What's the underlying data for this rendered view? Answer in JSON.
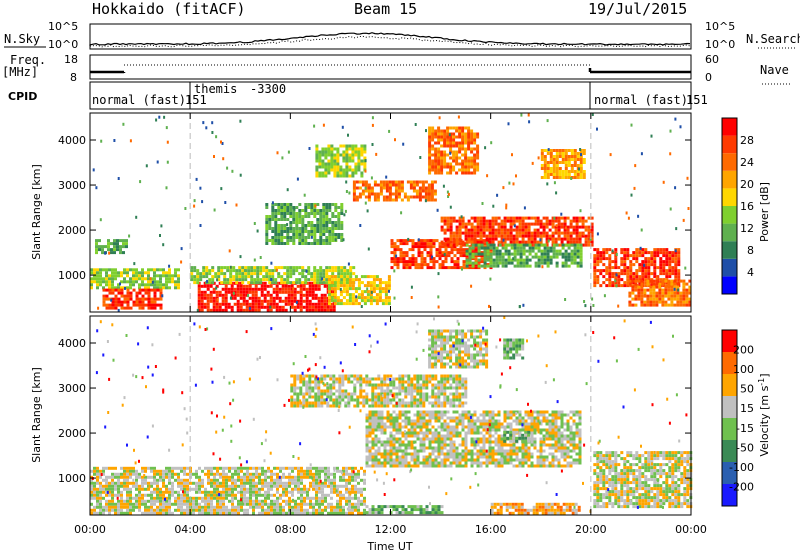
{
  "header": {
    "title": "Hokkaido (fitACF)",
    "beam": "Beam 15",
    "date": "19/Jul/2015"
  },
  "noise_panel": {
    "left_label": "N.Sky",
    "right_label": "N.Search",
    "ticks_left": [
      "10^5",
      "10^0"
    ],
    "ticks_right": [
      "10^5",
      "10^0"
    ]
  },
  "freq_panel": {
    "left_label_1": "Freq.",
    "left_label_2": "[MHz]",
    "ticks_left": [
      "18",
      "8"
    ],
    "right_label": "Nave",
    "ticks_right": [
      "60",
      "0"
    ]
  },
  "cpid_panel": {
    "label": "CPID",
    "segments": [
      {
        "name": "normal (fast)",
        "id": "151",
        "start_hr": 0.0
      },
      {
        "name": "themis",
        "id": "-3300",
        "start_hr": 4.0
      },
      {
        "name": "normal (fast)",
        "id": "151",
        "start_hr": 20.0
      }
    ]
  },
  "time_axis": {
    "label": "Time UT",
    "ticks": [
      "00:00",
      "04:00",
      "08:00",
      "12:00",
      "16:00",
      "20:00",
      "00:00"
    ]
  },
  "power_panel": {
    "ylabel": "Slant Range [km]",
    "yticks": [
      "1000",
      "2000",
      "3000",
      "4000"
    ],
    "colorbar_label": "Power [dB]",
    "colorbar_ticks": [
      "28",
      "24",
      "20",
      "16",
      "12",
      "8",
      "4"
    ],
    "colors": [
      "#0000ff",
      "#1f4fa8",
      "#2f7f55",
      "#5fb04f",
      "#7fcf2f",
      "#ffd700",
      "#ffa500",
      "#ff6a00",
      "#ff3a00",
      "#ff0000"
    ]
  },
  "velocity_panel": {
    "ylabel": "Slant Range [km]",
    "yticks": [
      "1000",
      "2000",
      "3000",
      "4000"
    ],
    "colorbar_label": "Velocity [m s",
    "colorbar_label_sup": "-1",
    "colorbar_label_end": "]",
    "colorbar_ticks": [
      "200",
      "100",
      "50",
      "15",
      "-15",
      "-50",
      "-100",
      "-200"
    ],
    "colors": [
      "#1a1aff",
      "#2a5fb0",
      "#3a8a55",
      "#6fc04f",
      "#c0c0c0",
      "#ffa500",
      "#ff6a00",
      "#ff0000"
    ]
  },
  "chart_data": {
    "type": "heatmap",
    "x_range_hours": [
      0,
      24
    ],
    "y_range_km": [
      180,
      4600
    ],
    "power_regions": [
      {
        "t0": 0.2,
        "t1": 1.4,
        "r0": 1500,
        "r1": 1800,
        "level": 3
      },
      {
        "t0": 0.0,
        "t1": 3.5,
        "r0": 700,
        "r1": 1150,
        "level": 4
      },
      {
        "t0": 0.5,
        "t1": 2.8,
        "r0": 300,
        "r1": 700,
        "level": 8
      },
      {
        "t0": 4.3,
        "t1": 9.7,
        "r0": 250,
        "r1": 850,
        "level": 9
      },
      {
        "t0": 4.0,
        "t1": 10.5,
        "r0": 850,
        "r1": 1200,
        "level": 4
      },
      {
        "t0": 9.5,
        "t1": 12.0,
        "r0": 350,
        "r1": 1000,
        "level": 5
      },
      {
        "t0": 10.5,
        "t1": 13.8,
        "r0": 2700,
        "r1": 3100,
        "level": 7
      },
      {
        "t0": 13.5,
        "t1": 15.5,
        "r0": 3300,
        "r1": 4300,
        "level": 7
      },
      {
        "t0": 12.0,
        "t1": 16.0,
        "r0": 1200,
        "r1": 1800,
        "level": 8
      },
      {
        "t0": 14.0,
        "t1": 20.0,
        "r0": 1700,
        "r1": 2300,
        "level": 8
      },
      {
        "t0": 15.0,
        "t1": 19.6,
        "r0": 1200,
        "r1": 1700,
        "level": 3
      },
      {
        "t0": 18.0,
        "t1": 19.7,
        "r0": 3200,
        "r1": 3800,
        "level": 6
      },
      {
        "t0": 20.1,
        "t1": 23.5,
        "r0": 800,
        "r1": 1600,
        "level": 8
      },
      {
        "t0": 21.5,
        "t1": 24.0,
        "r0": 350,
        "r1": 900,
        "level": 7
      },
      {
        "t0": 7.0,
        "t1": 10.0,
        "r0": 1700,
        "r1": 2600,
        "level": 3
      },
      {
        "t0": 9.0,
        "t1": 11.0,
        "r0": 3200,
        "r1": 3900,
        "level": 4
      }
    ],
    "velocity_regions": [
      {
        "t0": 0.0,
        "t1": 11.0,
        "r0": 250,
        "r1": 1250,
        "level": 4
      },
      {
        "t0": 11.0,
        "t1": 19.6,
        "r0": 1300,
        "r1": 2500,
        "level": 4
      },
      {
        "t0": 8.0,
        "t1": 15.0,
        "r0": 2600,
        "r1": 3300,
        "level": 4
      },
      {
        "t0": 13.5,
        "t1": 15.8,
        "r0": 3500,
        "r1": 4300,
        "level": 4
      },
      {
        "t0": 16.5,
        "t1": 17.3,
        "r0": 3700,
        "r1": 4100,
        "level": 3
      },
      {
        "t0": 16.5,
        "t1": 17.5,
        "r0": 1850,
        "r1": 2050,
        "level": 3
      },
      {
        "t0": 11.0,
        "t1": 14.0,
        "r0": 250,
        "r1": 400,
        "level": 3
      },
      {
        "t0": 16.0,
        "t1": 19.5,
        "r0": 250,
        "r1": 450,
        "level": 5
      },
      {
        "t0": 20.1,
        "t1": 24.0,
        "r0": 400,
        "r1": 1600,
        "level": 4
      }
    ]
  }
}
